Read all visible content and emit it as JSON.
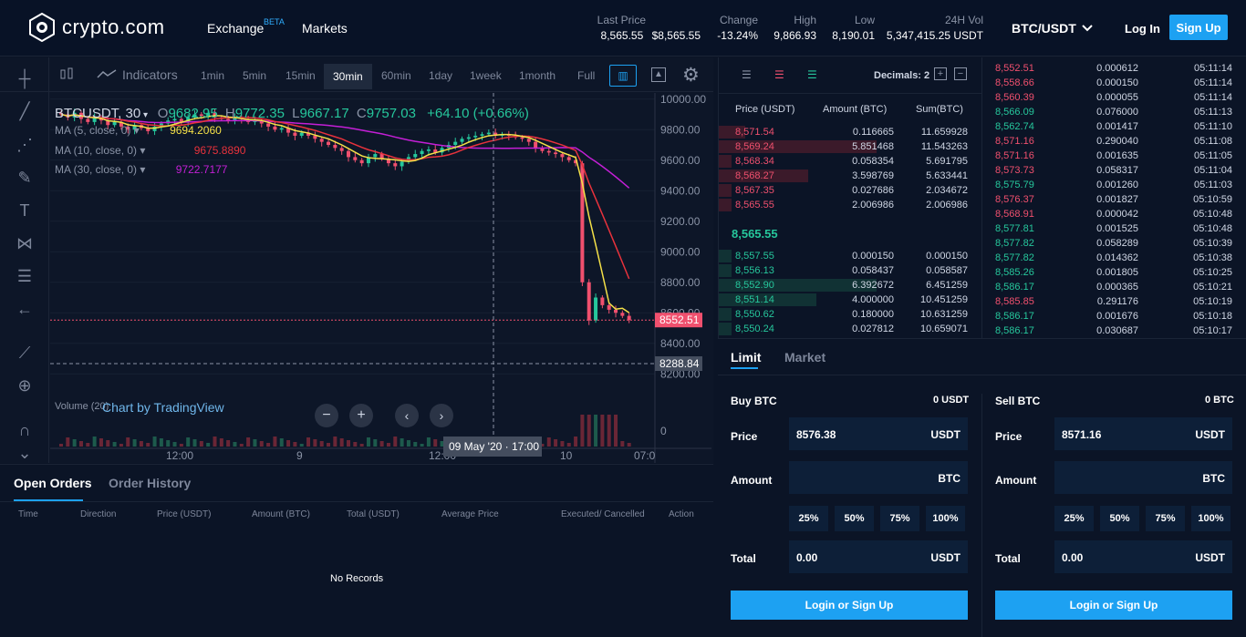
{
  "header": {
    "brand": "crypto.com",
    "nav": {
      "exchange": "Exchange",
      "beta": "BETA",
      "markets": "Markets"
    },
    "stats": [
      {
        "label": "Last Price",
        "value": "8,565.55",
        "value2": "$8,565.55"
      },
      {
        "label": "Change",
        "value": "-13.24%"
      },
      {
        "label": "High",
        "value": "9,866.93"
      },
      {
        "label": "Low",
        "value": "8,190.01"
      },
      {
        "label": "24H Vol",
        "value": "5,347,415.25 USDT"
      }
    ],
    "pair": "BTC/USDT",
    "login": "Log In",
    "signup": "Sign Up",
    "colors": {
      "accent": "#1da1f2",
      "up": "#26c79c",
      "down": "#f0506e"
    }
  },
  "chart": {
    "indicators": "Indicators",
    "intervals": [
      "1min",
      "5min",
      "15min",
      "30min",
      "60min",
      "1day",
      "1week",
      "1month",
      "Full"
    ],
    "active_interval": "30min",
    "symbol": "BTCUSDT, 30",
    "ohlc": {
      "o_label": "O",
      "o": "9682.95",
      "h_label": "H",
      "h": "9772.35",
      "l_label": "L",
      "l": "9667.17",
      "c_label": "C",
      "c": "9757.03",
      "chg": "+64.10 (+0.66%)"
    },
    "ma": [
      {
        "label": "MA (5, close, 0)",
        "value": "9694.2060",
        "color": "#f5e148"
      },
      {
        "label": "MA (10, close, 0)",
        "value": "9675.8890",
        "color": "#e8323c"
      },
      {
        "label": "MA (30, close, 0)",
        "value": "9722.7177",
        "color": "#c41fd6"
      }
    ],
    "volume_label": "Volume (20)",
    "watermark": "Chart by TradingView",
    "last_price_tag": "8552.51",
    "crosshair_price": "8288.84",
    "crosshair_time": "09 May '20 · 17:00",
    "y_ticks": [
      "10000.00",
      "9800.00",
      "9600.00",
      "9400.00",
      "9200.00",
      "9000.00",
      "8800.00",
      "8600.00",
      "8400.00",
      "8200.00"
    ],
    "x_ticks": [
      "12:00",
      "9",
      "12:00",
      "10",
      "07:0"
    ],
    "vol_zero": "0"
  },
  "chart_data": {
    "type": "candlestick",
    "ylim": [
      8100,
      10100
    ],
    "x_ticks": [
      "12:00",
      "9",
      "12:00",
      "10",
      "07:0"
    ],
    "y_ticks": [
      10000,
      9800,
      9600,
      9400,
      9200,
      9000,
      8800,
      8600,
      8400,
      8200
    ],
    "closes": [
      9900,
      9880,
      9910,
      9870,
      9850,
      9880,
      9860,
      9830,
      9850,
      9820,
      9800,
      9830,
      9810,
      9790,
      9820,
      9840,
      9860,
      9870,
      9850,
      9880,
      9900,
      9890,
      9910,
      9880,
      9870,
      9860,
      9880,
      9870,
      9850,
      9860,
      9840,
      9820,
      9800,
      9810,
      9780,
      9760,
      9780,
      9760,
      9740,
      9720,
      9700,
      9680,
      9660,
      9620,
      9600,
      9580,
      9620,
      9640,
      9610,
      9580,
      9560,
      9590,
      9620,
      9640,
      9660,
      9670,
      9650,
      9680,
      9700,
      9720,
      9740,
      9750,
      9760,
      9770,
      9780,
      9760,
      9770,
      9760,
      9750,
      9740,
      9720,
      9680,
      9660,
      9650,
      9640,
      9620,
      9600,
      9580,
      8800,
      8550,
      8700,
      8650,
      8620,
      8600,
      8580,
      8552.51
    ],
    "last_price": 8552.51
  },
  "orderbook": {
    "decimals": "Decimals: 2",
    "headers": [
      "Price (USDT)",
      "Amount (BTC)",
      "Sum(BTC)"
    ],
    "asks": [
      {
        "price": "8,571.54",
        "amount": "0.116665",
        "sum": "11.659928",
        "depth": 0.1
      },
      {
        "price": "8,569.24",
        "amount": "5.851468",
        "sum": "11.543263",
        "depth": 0.6
      },
      {
        "price": "8,568.34",
        "amount": "0.058354",
        "sum": "5.691795",
        "depth": 0.05
      },
      {
        "price": "8,568.27",
        "amount": "3.598769",
        "sum": "5.633441",
        "depth": 0.34
      },
      {
        "price": "8,567.35",
        "amount": "0.027686",
        "sum": "2.034672",
        "depth": 0.05
      },
      {
        "price": "8,565.55",
        "amount": "2.006986",
        "sum": "2.006986",
        "depth": 0.05
      }
    ],
    "mid": "8,565.55",
    "bids": [
      {
        "price": "8,557.55",
        "amount": "0.000150",
        "sum": "0.000150",
        "depth": 0.05
      },
      {
        "price": "8,556.13",
        "amount": "0.058437",
        "sum": "0.058587",
        "depth": 0.05
      },
      {
        "price": "8,552.90",
        "amount": "6.392672",
        "sum": "6.451259",
        "depth": 0.6
      },
      {
        "price": "8,551.14",
        "amount": "4.000000",
        "sum": "10.451259",
        "depth": 0.37
      },
      {
        "price": "8,550.62",
        "amount": "0.180000",
        "sum": "10.631259",
        "depth": 0.05
      },
      {
        "price": "8,550.24",
        "amount": "0.027812",
        "sum": "10.659071",
        "depth": 0.05
      }
    ]
  },
  "trades": [
    {
      "price": "8,552.51",
      "amount": "0.000612",
      "time": "05:11:14",
      "side": "sell"
    },
    {
      "price": "8,558.66",
      "amount": "0.000150",
      "time": "05:11:14",
      "side": "sell"
    },
    {
      "price": "8,560.39",
      "amount": "0.000055",
      "time": "05:11:14",
      "side": "sell"
    },
    {
      "price": "8,566.09",
      "amount": "0.076000",
      "time": "05:11:13",
      "side": "buy"
    },
    {
      "price": "8,562.74",
      "amount": "0.001417",
      "time": "05:11:10",
      "side": "buy"
    },
    {
      "price": "8,571.16",
      "amount": "0.290040",
      "time": "05:11:08",
      "side": "sell"
    },
    {
      "price": "8,571.16",
      "amount": "0.001635",
      "time": "05:11:05",
      "side": "sell"
    },
    {
      "price": "8,573.73",
      "amount": "0.058317",
      "time": "05:11:04",
      "side": "sell"
    },
    {
      "price": "8,575.79",
      "amount": "0.001260",
      "time": "05:11:03",
      "side": "buy"
    },
    {
      "price": "8,576.37",
      "amount": "0.001827",
      "time": "05:10:59",
      "side": "sell"
    },
    {
      "price": "8,568.91",
      "amount": "0.000042",
      "time": "05:10:48",
      "side": "sell"
    },
    {
      "price": "8,577.81",
      "amount": "0.001525",
      "time": "05:10:48",
      "side": "buy"
    },
    {
      "price": "8,577.82",
      "amount": "0.058289",
      "time": "05:10:39",
      "side": "buy"
    },
    {
      "price": "8,577.82",
      "amount": "0.014362",
      "time": "05:10:38",
      "side": "buy"
    },
    {
      "price": "8,585.26",
      "amount": "0.001805",
      "time": "05:10:25",
      "side": "buy"
    },
    {
      "price": "8,586.17",
      "amount": "0.000365",
      "time": "05:10:21",
      "side": "buy"
    },
    {
      "price": "8,585.85",
      "amount": "0.291176",
      "time": "05:10:19",
      "side": "sell"
    },
    {
      "price": "8,586.17",
      "amount": "0.001676",
      "time": "05:10:18",
      "side": "buy"
    },
    {
      "price": "8,586.17",
      "amount": "0.030687",
      "time": "05:10:17",
      "side": "buy"
    }
  ],
  "orders": {
    "tabs": [
      "Open Orders",
      "Order History"
    ],
    "columns": [
      "Time",
      "Direction",
      "Price (USDT)",
      "Amount (BTC)",
      "Total (USDT)",
      "Average Price",
      "Executed/ Cancelled",
      "Action"
    ],
    "empty": "No Records"
  },
  "form": {
    "tabs": [
      "Limit",
      "Market"
    ],
    "buy": {
      "title": "Buy BTC",
      "balance": "0 USDT",
      "price": "8576.38",
      "total": "0.00"
    },
    "sell": {
      "title": "Sell BTC",
      "balance": "0 BTC",
      "price": "8571.16",
      "total": "0.00"
    },
    "labels": {
      "price": "Price",
      "amount": "Amount",
      "total": "Total"
    },
    "units": {
      "usdt": "USDT",
      "btc": "BTC"
    },
    "pcts": [
      "25%",
      "50%",
      "75%",
      "100%"
    ],
    "button": "Login or Sign Up"
  }
}
